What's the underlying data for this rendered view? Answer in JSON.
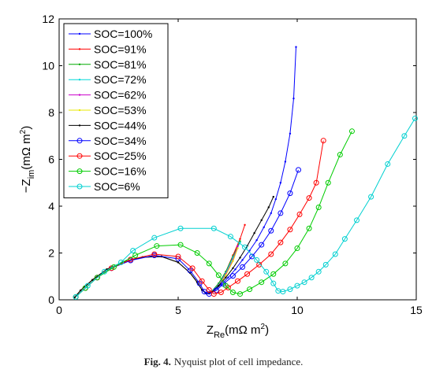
{
  "figure": {
    "caption_label": "Fig. 4.",
    "caption_text": "Nyquist plot of cell impedance."
  },
  "chart_data": {
    "type": "line",
    "xlabel": {
      "main": "Z",
      "sub": "Re",
      "unit_a": "(mΩ m",
      "sup": "2",
      "unit_b": ")"
    },
    "ylabel": {
      "pre": "−Z",
      "sub": "im",
      "unit_a": "(mΩ m",
      "sup": "2",
      "unit_b": ")"
    },
    "xlim": [
      0,
      15
    ],
    "ylim": [
      0,
      12
    ],
    "x_ticks": [
      0,
      5,
      10,
      15
    ],
    "y_ticks": [
      0,
      2,
      4,
      6,
      8,
      10,
      12
    ],
    "grid": false,
    "legend_position": "top-left",
    "series": [
      {
        "name": "SOC=100%",
        "color": "#0000ff",
        "marker": "dot",
        "x": [
          0.65,
          0.9,
          1.4,
          2.0,
          2.7,
          3.5,
          4.3,
          5.0,
          5.5,
          5.8,
          6.0,
          6.15,
          6.3,
          6.5,
          6.8,
          7.1,
          7.4,
          7.7,
          8.0,
          8.3,
          8.6,
          8.9,
          9.1,
          9.3,
          9.5,
          9.7,
          9.85,
          9.95
        ],
        "y": [
          0.1,
          0.4,
          0.85,
          1.3,
          1.62,
          1.82,
          1.85,
          1.6,
          1.15,
          0.75,
          0.42,
          0.28,
          0.26,
          0.38,
          0.65,
          0.95,
          1.3,
          1.7,
          2.1,
          2.55,
          3.1,
          3.7,
          4.3,
          5.0,
          5.9,
          7.1,
          8.6,
          10.8
        ]
      },
      {
        "name": "SOC=91%",
        "color": "#ff0000",
        "marker": "dot",
        "x": [
          0.65,
          0.9,
          1.4,
          2.0,
          2.7,
          3.5,
          4.3,
          5.0,
          5.5,
          5.8,
          6.0,
          6.2,
          6.4,
          6.7,
          7.0,
          7.3,
          7.6,
          7.8
        ],
        "y": [
          0.1,
          0.4,
          0.85,
          1.3,
          1.62,
          1.82,
          1.85,
          1.6,
          1.15,
          0.75,
          0.42,
          0.28,
          0.35,
          0.7,
          1.2,
          1.9,
          2.6,
          3.2
        ]
      },
      {
        "name": "SOC=81%",
        "color": "#00aa00",
        "marker": "dot",
        "x": [
          0.65,
          0.9,
          1.4,
          2.0,
          2.7,
          3.5,
          4.3,
          5.0,
          5.5,
          5.8,
          6.0,
          6.2,
          6.4,
          6.7,
          7.0,
          7.3,
          7.6
        ],
        "y": [
          0.1,
          0.4,
          0.85,
          1.3,
          1.62,
          1.82,
          1.85,
          1.6,
          1.15,
          0.75,
          0.42,
          0.28,
          0.35,
          0.7,
          1.2,
          1.85,
          2.5
        ]
      },
      {
        "name": "SOC=72%",
        "color": "#00d8d8",
        "marker": "dot",
        "x": [
          0.65,
          0.9,
          1.4,
          2.0,
          2.7,
          3.5,
          4.3,
          5.0,
          5.5,
          5.8,
          6.0,
          6.2,
          6.4,
          6.7,
          7.0,
          7.3,
          7.6
        ],
        "y": [
          0.1,
          0.4,
          0.85,
          1.3,
          1.62,
          1.82,
          1.85,
          1.6,
          1.15,
          0.75,
          0.42,
          0.28,
          0.35,
          0.65,
          1.15,
          1.8,
          2.45
        ]
      },
      {
        "name": "SOC=62%",
        "color": "#cc00cc",
        "marker": "dot",
        "x": [
          0.65,
          0.9,
          1.4,
          2.0,
          2.7,
          3.5,
          4.3,
          5.0,
          5.5,
          5.8,
          6.0,
          6.2,
          6.4,
          6.7,
          7.0,
          7.3,
          7.5
        ],
        "y": [
          0.1,
          0.4,
          0.85,
          1.3,
          1.62,
          1.82,
          1.85,
          1.6,
          1.15,
          0.75,
          0.42,
          0.28,
          0.33,
          0.62,
          1.1,
          1.7,
          2.3
        ]
      },
      {
        "name": "SOC=53%",
        "color": "#e8e800",
        "marker": "dot",
        "x": [
          0.65,
          0.9,
          1.4,
          2.0,
          2.7,
          3.5,
          4.3,
          5.0,
          5.5,
          5.8,
          6.0,
          6.2,
          6.4,
          6.7,
          7.0,
          7.3,
          7.5
        ],
        "y": [
          0.1,
          0.4,
          0.85,
          1.3,
          1.62,
          1.82,
          1.85,
          1.6,
          1.15,
          0.75,
          0.42,
          0.28,
          0.32,
          0.6,
          1.05,
          1.65,
          2.2
        ]
      },
      {
        "name": "SOC=44%",
        "color": "#000000",
        "marker": "dot",
        "x": [
          0.65,
          0.9,
          1.4,
          2.0,
          2.7,
          3.5,
          4.3,
          5.0,
          5.5,
          5.8,
          6.0,
          6.2,
          6.4,
          6.7,
          7.0,
          7.3,
          7.6,
          7.9,
          8.2,
          8.5,
          8.8,
          9.0
        ],
        "y": [
          0.1,
          0.4,
          0.85,
          1.3,
          1.62,
          1.82,
          1.85,
          1.6,
          1.15,
          0.75,
          0.42,
          0.26,
          0.32,
          0.6,
          0.95,
          1.35,
          1.8,
          2.3,
          2.85,
          3.4,
          3.95,
          4.4
        ]
      },
      {
        "name": "SOC=34%",
        "color": "#0000ff",
        "marker": "circle",
        "x": [
          0.7,
          1.1,
          1.6,
          2.2,
          3.0,
          4.0,
          5.0,
          5.5,
          5.9,
          6.1,
          6.3,
          6.6,
          6.9,
          7.3,
          7.7,
          8.1,
          8.5,
          8.9,
          9.3,
          9.7,
          10.05
        ],
        "y": [
          0.12,
          0.5,
          0.95,
          1.35,
          1.68,
          1.9,
          1.75,
          1.25,
          0.7,
          0.35,
          0.25,
          0.4,
          0.68,
          1.02,
          1.4,
          1.85,
          2.35,
          2.95,
          3.7,
          4.55,
          5.55
        ]
      },
      {
        "name": "SOC=25%",
        "color": "#ff0000",
        "marker": "circle",
        "x": [
          0.7,
          1.1,
          1.6,
          2.2,
          3.0,
          4.0,
          5.0,
          5.6,
          6.0,
          6.3,
          6.5,
          6.8,
          7.1,
          7.5,
          7.9,
          8.4,
          8.9,
          9.3,
          9.7,
          10.1,
          10.5,
          10.8,
          11.1
        ],
        "y": [
          0.12,
          0.5,
          0.95,
          1.35,
          1.72,
          1.95,
          1.85,
          1.35,
          0.8,
          0.42,
          0.25,
          0.32,
          0.52,
          0.8,
          1.1,
          1.5,
          1.95,
          2.45,
          3.0,
          3.65,
          4.35,
          5.0,
          6.8
        ]
      },
      {
        "name": "SOC=16%",
        "color": "#00cc00",
        "marker": "circle",
        "x": [
          0.7,
          1.1,
          1.6,
          2.3,
          3.2,
          4.1,
          5.1,
          5.8,
          6.3,
          6.7,
          7.0,
          7.3,
          7.6,
          8.0,
          8.5,
          9.0,
          9.5,
          10.0,
          10.5,
          10.9,
          11.3,
          11.8,
          12.3
        ],
        "y": [
          0.12,
          0.5,
          0.95,
          1.4,
          1.9,
          2.3,
          2.35,
          2.0,
          1.55,
          1.05,
          0.6,
          0.32,
          0.25,
          0.45,
          0.75,
          1.1,
          1.55,
          2.2,
          3.05,
          3.95,
          5.0,
          6.2,
          7.2
        ]
      },
      {
        "name": "SOC=6%",
        "color": "#00d0d0",
        "marker": "circle",
        "x": [
          0.7,
          1.2,
          1.9,
          2.6,
          3.1,
          4.0,
          5.1,
          6.5,
          7.2,
          7.8,
          8.3,
          8.7,
          9.0,
          9.2,
          9.4,
          9.7,
          10.0,
          10.3,
          10.6,
          10.9,
          11.2,
          11.6,
          12.0,
          12.5,
          13.1,
          13.8,
          14.5,
          14.95
        ],
        "y": [
          0.12,
          0.6,
          1.2,
          1.6,
          2.1,
          2.65,
          3.05,
          3.05,
          2.7,
          2.25,
          1.7,
          1.2,
          0.7,
          0.38,
          0.35,
          0.45,
          0.6,
          0.75,
          0.95,
          1.2,
          1.5,
          1.95,
          2.6,
          3.4,
          4.4,
          5.8,
          7.0,
          7.75
        ]
      }
    ]
  }
}
